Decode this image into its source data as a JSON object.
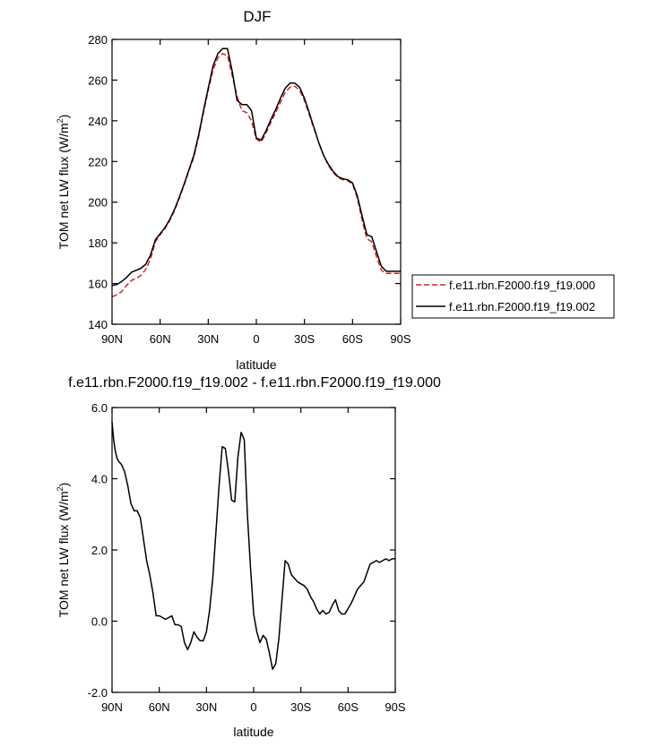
{
  "colors": {
    "series_000": "#dd2222",
    "series_002": "#000000",
    "axis": "#000000"
  },
  "chart_data": [
    {
      "type": "line",
      "title": "DJF",
      "xlabel": "latitude",
      "ylabel_main": "TOM net LW flux (W/m",
      "ylabel_sup": "2",
      "ylabel_close": ")",
      "xlim": [
        90,
        -90
      ],
      "ylim": [
        140,
        280
      ],
      "x_ticks": [
        {
          "value": 90,
          "label": "90N"
        },
        {
          "value": 60,
          "label": "60N"
        },
        {
          "value": 30,
          "label": "30N"
        },
        {
          "value": 0,
          "label": "0"
        },
        {
          "value": -30,
          "label": "30S"
        },
        {
          "value": -60,
          "label": "60S"
        },
        {
          "value": -90,
          "label": "90S"
        }
      ],
      "y_ticks": [
        {
          "value": 140,
          "label": "140"
        },
        {
          "value": 160,
          "label": "160"
        },
        {
          "value": 180,
          "label": "180"
        },
        {
          "value": 200,
          "label": "200"
        },
        {
          "value": 220,
          "label": "220"
        },
        {
          "value": 240,
          "label": "240"
        },
        {
          "value": 260,
          "label": "260"
        },
        {
          "value": 280,
          "label": "280"
        }
      ],
      "legend_position": "right",
      "series": [
        {
          "name": "f.e11.rbn.F2000.f19_f19.000",
          "color": "#dd2222",
          "dash": "dashed",
          "x": [
            90,
            87,
            84,
            81,
            78,
            75,
            72,
            69,
            66,
            63,
            60,
            57,
            54,
            51,
            48,
            45,
            42,
            39,
            36,
            33,
            30,
            27,
            24,
            21,
            18,
            15,
            12,
            9,
            6,
            3,
            0,
            -3,
            -6,
            -9,
            -12,
            -15,
            -18,
            -21,
            -24,
            -27,
            -30,
            -33,
            -36,
            -39,
            -42,
            -45,
            -48,
            -51,
            -54,
            -57,
            -60,
            -63,
            -66,
            -69,
            -72,
            -75,
            -78,
            -81,
            -84,
            -87,
            -90
          ],
          "y": [
            153.5,
            154.5,
            156,
            159,
            161.5,
            162.5,
            164,
            167,
            172,
            180.5,
            184,
            187,
            191,
            196,
            202,
            208.5,
            215.5,
            222,
            232,
            244,
            255,
            265,
            271,
            273,
            272,
            262,
            252,
            245,
            244,
            240,
            231,
            229.5,
            234,
            239,
            244,
            249,
            254,
            256.5,
            257,
            255,
            250,
            243,
            236,
            229,
            223,
            218,
            214.5,
            212,
            211,
            210.5,
            209,
            202,
            191,
            182,
            180.5,
            173,
            166.5,
            165,
            165,
            165,
            165
          ]
        },
        {
          "name": "f.e11.rbn.F2000.f19_f19.002",
          "color": "#000000",
          "dash": "solid",
          "x": [
            90,
            87,
            84,
            81,
            78,
            75,
            72,
            69,
            66,
            63,
            60,
            57,
            54,
            51,
            48,
            45,
            42,
            39,
            36,
            33,
            30,
            27,
            24,
            21,
            18,
            15,
            12,
            9,
            6,
            3,
            0,
            -3,
            -6,
            -9,
            -12,
            -15,
            -18,
            -21,
            -24,
            -27,
            -30,
            -33,
            -36,
            -39,
            -42,
            -45,
            -48,
            -51,
            -54,
            -57,
            -60,
            -63,
            -66,
            -69,
            -72,
            -75,
            -78,
            -81,
            -84,
            -87,
            -90
          ],
          "y": [
            159,
            159.5,
            161,
            163,
            165.5,
            166.5,
            167.5,
            169.5,
            174,
            181.5,
            184.5,
            187.5,
            191.5,
            196.5,
            202.5,
            209,
            216,
            223,
            233,
            245,
            256,
            267,
            273,
            275.5,
            275.5,
            264,
            250,
            248,
            248,
            245,
            231.5,
            230.5,
            235,
            240.5,
            245.5,
            251,
            256,
            258.5,
            258.5,
            256.5,
            251,
            244,
            236.5,
            229,
            223,
            218.5,
            215,
            212.5,
            211.5,
            211,
            209.5,
            203,
            193,
            184,
            183,
            175.5,
            168.5,
            166,
            166,
            166,
            166
          ]
        }
      ]
    },
    {
      "type": "line",
      "title": "f.e11.rbn.F2000.f19_f19.002 - f.e11.rbn.F2000.f19_f19.000",
      "xlabel": "latitude",
      "ylabel_main": "TOM net LW flux (W/m",
      "ylabel_sup": "2",
      "ylabel_close": ")",
      "xlim": [
        90,
        -90
      ],
      "ylim": [
        -2.0,
        6.0
      ],
      "x_ticks": [
        {
          "value": 90,
          "label": "90N"
        },
        {
          "value": 60,
          "label": "60N"
        },
        {
          "value": 30,
          "label": "30N"
        },
        {
          "value": 0,
          "label": "0"
        },
        {
          "value": -30,
          "label": "30S"
        },
        {
          "value": -60,
          "label": "60S"
        },
        {
          "value": -90,
          "label": "90S"
        }
      ],
      "y_ticks": [
        {
          "value": -2.0,
          "label": "-2.0"
        },
        {
          "value": 0.0,
          "label": "0.0"
        },
        {
          "value": 2.0,
          "label": "2.0"
        },
        {
          "value": 4.0,
          "label": "4.0"
        },
        {
          "value": 6.0,
          "label": "6.0"
        }
      ],
      "series": [
        {
          "color": "#000000",
          "dash": "solid",
          "x": [
            90,
            89,
            88,
            87,
            86,
            84,
            82,
            80,
            78,
            76,
            74,
            72,
            70,
            68,
            66,
            64,
            62,
            60,
            58,
            56,
            54,
            52,
            50,
            48,
            46,
            44,
            42,
            40,
            38,
            36,
            34,
            32,
            30,
            28,
            26,
            24,
            22,
            20,
            18,
            16,
            14,
            12,
            10,
            8,
            6,
            4,
            2,
            0,
            -2,
            -4,
            -6,
            -8,
            -10,
            -12,
            -14,
            -16,
            -18,
            -20,
            -22,
            -24,
            -26,
            -28,
            -30,
            -32,
            -34,
            -36,
            -38,
            -40,
            -42,
            -44,
            -46,
            -48,
            -50,
            -52,
            -54,
            -56,
            -58,
            -60,
            -62,
            -64,
            -66,
            -68,
            -70,
            -72,
            -74,
            -76,
            -78,
            -80,
            -82,
            -84,
            -86,
            -88,
            -90
          ],
          "y": [
            5.6,
            5.1,
            4.8,
            4.6,
            4.5,
            4.4,
            4.2,
            3.8,
            3.3,
            3.1,
            3.1,
            2.9,
            2.3,
            1.7,
            1.3,
            0.8,
            0.15,
            0.15,
            0.1,
            0.05,
            0.1,
            0.15,
            -0.1,
            -0.1,
            -0.15,
            -0.6,
            -0.8,
            -0.6,
            -0.3,
            -0.45,
            -0.55,
            -0.55,
            -0.3,
            0.3,
            1.2,
            2.5,
            3.8,
            4.9,
            4.85,
            4.2,
            3.4,
            3.35,
            4.6,
            5.3,
            5.1,
            3.0,
            1.5,
            0.2,
            -0.3,
            -0.6,
            -0.4,
            -0.5,
            -0.9,
            -1.35,
            -1.2,
            -0.5,
            0.6,
            1.7,
            1.6,
            1.3,
            1.2,
            1.1,
            1.05,
            1.0,
            0.9,
            0.7,
            0.55,
            0.35,
            0.2,
            0.3,
            0.2,
            0.25,
            0.45,
            0.6,
            0.3,
            0.2,
            0.2,
            0.35,
            0.5,
            0.7,
            0.9,
            1.0,
            1.1,
            1.35,
            1.6,
            1.65,
            1.7,
            1.65,
            1.7,
            1.75,
            1.7,
            1.75,
            1.75
          ]
        }
      ]
    }
  ]
}
